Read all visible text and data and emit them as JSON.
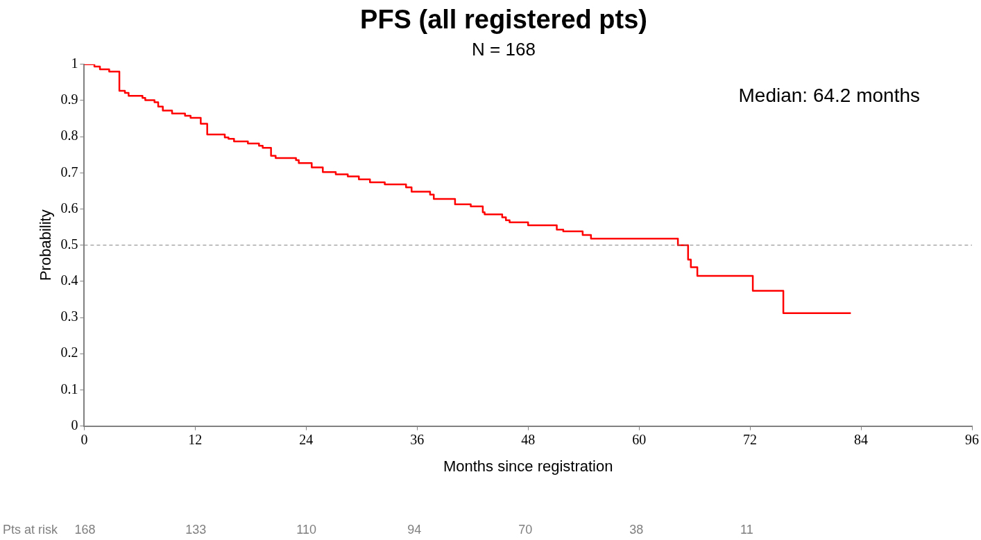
{
  "chart_data": {
    "type": "step",
    "title": "PFS (all registered pts)",
    "subtitle": "N = 168",
    "xlabel": "Months since registration",
    "ylabel": "Probability",
    "series": [
      {
        "color": "#ff0000",
        "x": [
          0,
          1.1,
          1.7,
          2.7,
          3.8,
          4.4,
          4.8,
          6.3,
          6.6,
          7.6,
          8.0,
          8.5,
          9.5,
          10.9,
          11.5,
          12.6,
          13.3,
          15.2,
          15.6,
          16.2,
          17.7,
          18.9,
          19.3,
          20.2,
          20.7,
          22.9,
          23.2,
          24.6,
          25.8,
          27.2,
          28.5,
          29.7,
          30.9,
          32.5,
          34.8,
          35.4,
          37.4,
          37.8,
          40.1,
          41.8,
          43.1,
          43.3,
          45.2,
          45.6,
          46.0,
          48.0,
          51.1,
          51.8,
          53.9,
          54.8,
          64.2,
          65.3,
          65.6,
          66.3,
          72.3,
          75.6,
          82.9
        ],
        "values": [
          1,
          0.994,
          0.986,
          0.98,
          0.927,
          0.921,
          0.913,
          0.907,
          0.901,
          0.895,
          0.883,
          0.872,
          0.864,
          0.858,
          0.852,
          0.836,
          0.806,
          0.798,
          0.794,
          0.787,
          0.781,
          0.775,
          0.769,
          0.747,
          0.741,
          0.735,
          0.727,
          0.715,
          0.702,
          0.696,
          0.69,
          0.682,
          0.674,
          0.668,
          0.66,
          0.648,
          0.64,
          0.628,
          0.613,
          0.607,
          0.591,
          0.585,
          0.577,
          0.569,
          0.563,
          0.555,
          0.543,
          0.538,
          0.528,
          0.518,
          0.5,
          0.46,
          0.439,
          0.415,
          0.374,
          0.312,
          0.312
        ]
      }
    ],
    "xlim": [
      0,
      96
    ],
    "xticks": [
      0,
      12,
      24,
      36,
      48,
      60,
      72,
      84,
      96
    ],
    "ylim": [
      0,
      1
    ],
    "yticks": [
      0,
      0.1,
      0.2,
      0.3,
      0.4,
      0.5,
      0.6,
      0.7,
      0.8,
      0.9,
      1
    ],
    "grid": false,
    "legend": false,
    "line_style": "solid",
    "ref_lines": [
      {
        "axis": "y",
        "value": 0.5,
        "color": "#808080",
        "line_style": "dashed"
      }
    ],
    "annotations": [
      "Median: 64.2 months",
      "Pts at risk",
      "168",
      "133",
      "110",
      "94",
      "70",
      "38",
      "11"
    ]
  }
}
